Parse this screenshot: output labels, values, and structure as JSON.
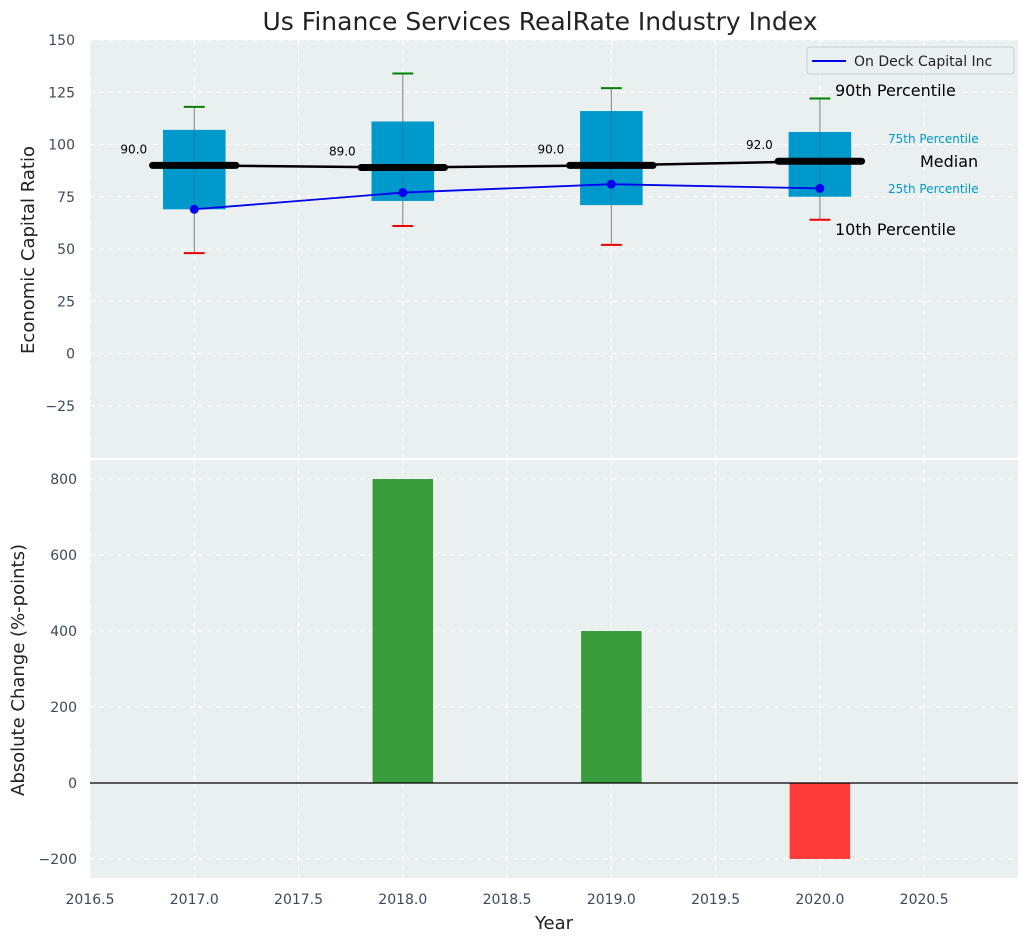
{
  "chart_data": [
    {
      "type": "box",
      "title": "Us Finance Services RealRate Industry Index",
      "ylabel": "Economic Capital Ratio",
      "ylim": [
        -50,
        150
      ],
      "yticks": [
        -25,
        0,
        25,
        50,
        75,
        100,
        125,
        150
      ],
      "xlim": [
        2016.5,
        2020.95
      ],
      "categories": [
        2017,
        2018,
        2019,
        2020
      ],
      "p10": [
        48,
        61,
        52,
        64
      ],
      "p25": [
        69,
        73,
        71,
        75
      ],
      "median": [
        90,
        89,
        90,
        92
      ],
      "p75": [
        107,
        111,
        116,
        106
      ],
      "p90": [
        118,
        134,
        127,
        122
      ],
      "median_labels": [
        "90.0",
        "89.0",
        "90.0",
        "92.0"
      ],
      "series": [
        {
          "name": "On Deck Capital Inc",
          "values": [
            69,
            77,
            81,
            79
          ],
          "color": "#0000ee"
        }
      ],
      "median_line_color": "#000000",
      "box_color": "#0099cc",
      "annotations": {
        "p90": "90th Percentile",
        "p75": "75th Percentile",
        "median": "Median",
        "p25": "25th Percentile",
        "p10": "10th Percentile"
      },
      "legend_position": "top-right",
      "grid": true
    },
    {
      "type": "bar",
      "xlabel": "Year",
      "ylabel": "Absolute Change (%-points)",
      "ylim": [
        -250,
        850
      ],
      "yticks": [
        -200,
        0,
        200,
        400,
        600,
        800
      ],
      "xlim": [
        2016.5,
        2020.95
      ],
      "xticks": [
        "2016.5",
        "2017.0",
        "2017.5",
        "2018.0",
        "2018.5",
        "2019.0",
        "2019.5",
        "2020.0",
        "2020.5"
      ],
      "x": [
        2018,
        2019,
        2020
      ],
      "values": [
        800,
        400,
        -200
      ],
      "positive_color": "#2e9632",
      "negative_color": "#ff3030",
      "grid": true
    }
  ]
}
